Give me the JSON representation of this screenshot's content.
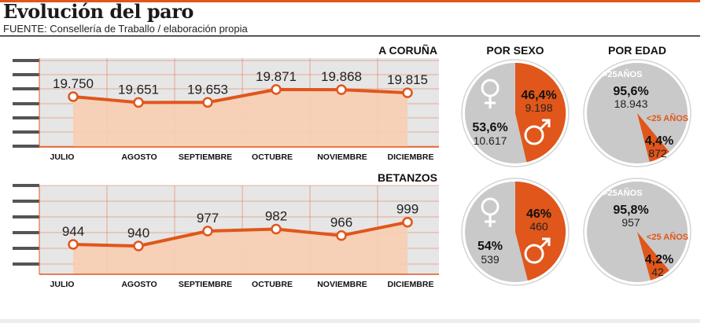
{
  "header": {
    "title": "Evolución del paro",
    "source": "FUENTE: Consellería de Traballo / elaboración propia"
  },
  "colors": {
    "accent": "#e0561b",
    "area_fill": "#f7cfb4",
    "panel_bg": "#e6e6e6",
    "pie_grey": "#c9c9c9",
    "axis_dark": "#555555"
  },
  "chart_data": [
    {
      "type": "area",
      "title": "A CORUÑA",
      "categories": [
        "JULIO",
        "AGOSTO",
        "SEPTIEMBRE",
        "OCTUBRE",
        "NOVIEMBRE",
        "DICIEMBRE"
      ],
      "values": [
        19750,
        19651,
        19653,
        19871,
        19868,
        19815
      ],
      "value_labels": [
        "19.750",
        "19.651",
        "19.653",
        "19.871",
        "19.868",
        "19.815"
      ],
      "ylim": [
        18900,
        20400
      ]
    },
    {
      "type": "area",
      "title": "BETANZOS",
      "categories": [
        "JULIO",
        "AGOSTO",
        "SEPTIEMBRE",
        "OCTUBRE",
        "NOVIEMBRE",
        "DICIEMBRE"
      ],
      "values": [
        944,
        940,
        977,
        982,
        966,
        999
      ],
      "value_labels": [
        "944",
        "940",
        "977",
        "982",
        "966",
        "999"
      ],
      "ylim": [
        870,
        1090
      ]
    },
    {
      "type": "pie",
      "title": "POR SEXO",
      "slices": [
        {
          "name": "♂",
          "percent_label": "46,4%",
          "count": "9.198",
          "value": 46.4
        },
        {
          "name": "♀",
          "percent_label": "53,6%",
          "count": "10.617",
          "value": 53.6
        }
      ]
    },
    {
      "type": "pie",
      "title": "POR EDAD",
      "slices": [
        {
          "name": "<25 AÑOS",
          "percent_label": "4,4%",
          "count": "872",
          "value": 4.4
        },
        {
          "name": ">25AÑOS",
          "percent_label": "95,6%",
          "count": "18.943",
          "value": 95.6
        }
      ]
    },
    {
      "type": "pie",
      "title": "POR SEXO",
      "slices": [
        {
          "name": "♂",
          "percent_label": "46%",
          "count": "460",
          "value": 46
        },
        {
          "name": "♀",
          "percent_label": "54%",
          "count": "539",
          "value": 54
        }
      ]
    },
    {
      "type": "pie",
      "title": "POR EDAD",
      "slices": [
        {
          "name": "<25 AÑOS",
          "percent_label": "4,2%",
          "count": "42",
          "value": 4.2
        },
        {
          "name": ">25AÑOS",
          "percent_label": "95,8%",
          "count": "957",
          "value": 95.8
        }
      ]
    }
  ]
}
